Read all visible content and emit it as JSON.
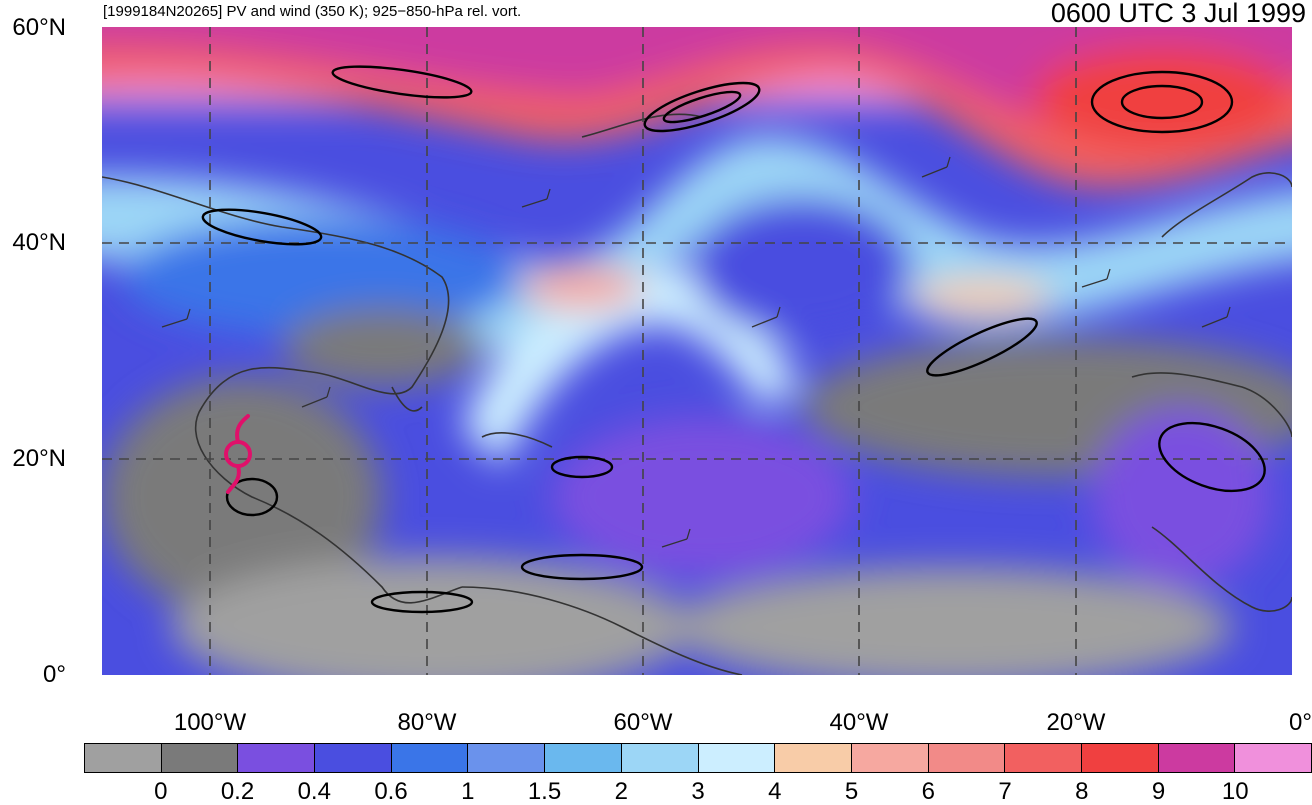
{
  "header": {
    "title_left": "[1999184N20265] PV and wind (350 K); 925−850-hPa rel. vort.",
    "title_right": "0600 UTC 3 Jul 1999"
  },
  "map": {
    "lat_labels": [
      "60°N",
      "40°N",
      "20°N",
      "0°"
    ],
    "lon_labels": [
      "100°W",
      "80°W",
      "60°W",
      "40°W",
      "20°W",
      "0°"
    ],
    "extent": {
      "lon_min": -110,
      "lon_max": 0,
      "lat_min": 0,
      "lat_max": 60
    },
    "gridlines": "dashed",
    "storm_symbol": {
      "name": "tropical-cyclone-symbol",
      "lon": -98,
      "lat": 20,
      "color": "#e0106a"
    }
  },
  "colorbar": {
    "colors": [
      "#a0a0a0",
      "#7a7a7a",
      "#7a4fe0",
      "#4a4ee0",
      "#3a75e8",
      "#6a92ec",
      "#6ab8ee",
      "#9cd6f6",
      "#cceeff",
      "#f8cca8",
      "#f6a8a0",
      "#f28a88",
      "#f26060",
      "#f04040",
      "#cc3aa0",
      "#f090dc"
    ],
    "labels": [
      "0",
      "0.2",
      "0.4",
      "0.6",
      "1",
      "1.5",
      "2",
      "3",
      "4",
      "5",
      "6",
      "7",
      "8",
      "9",
      "10"
    ]
  }
}
